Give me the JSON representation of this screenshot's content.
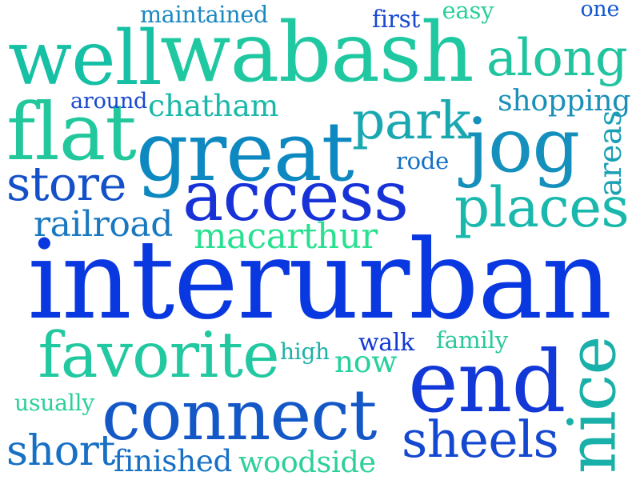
{
  "words": [
    {
      "text": "interurban",
      "color": "#0a38e0"
    },
    {
      "text": "wabash",
      "color": "#1fc8a0"
    },
    {
      "text": "great",
      "color": "#0e88c0"
    },
    {
      "text": "well",
      "color": "#16c0a4"
    },
    {
      "text": "access",
      "color": "#1733d8"
    },
    {
      "text": "jog",
      "color": "#1590bc"
    },
    {
      "text": "end",
      "color": "#1238d8"
    },
    {
      "text": "connect",
      "color": "#1458c8"
    },
    {
      "text": "nice",
      "color": "#18b0a8"
    },
    {
      "text": "flat",
      "color": "#22c89c"
    },
    {
      "text": "along",
      "color": "#22c4a0"
    },
    {
      "text": "favorite",
      "color": "#22c8a0"
    },
    {
      "text": "park",
      "color": "#1aa8b0"
    },
    {
      "text": "places",
      "color": "#1ab8ac"
    },
    {
      "text": "store",
      "color": "#1450c8"
    },
    {
      "text": "sheels",
      "color": "#1448d0"
    },
    {
      "text": "short",
      "color": "#1670c4"
    },
    {
      "text": "railroad",
      "color": "#1878c0"
    },
    {
      "text": "macarthur",
      "color": "#28e090"
    },
    {
      "text": "shopping",
      "color": "#1a90b8"
    },
    {
      "text": "chatham",
      "color": "#1ab8a8"
    },
    {
      "text": "finished",
      "color": "#1670c4"
    },
    {
      "text": "woodside",
      "color": "#2cd098"
    },
    {
      "text": "now",
      "color": "#26d09c"
    },
    {
      "text": "maintained",
      "color": "#1a88c0"
    },
    {
      "text": "areas",
      "color": "#1aa0b4"
    },
    {
      "text": "around",
      "color": "#1a48d0"
    },
    {
      "text": "high",
      "color": "#20b0a8"
    },
    {
      "text": "family",
      "color": "#2ac89c"
    },
    {
      "text": "walk",
      "color": "#1238d4"
    },
    {
      "text": "usually",
      "color": "#2ad098"
    },
    {
      "text": "first",
      "color": "#1a48d0"
    },
    {
      "text": "easy",
      "color": "#2ad098"
    },
    {
      "text": "one",
      "color": "#1258d0"
    },
    {
      "text": "rode",
      "color": "#1470c4"
    }
  ]
}
